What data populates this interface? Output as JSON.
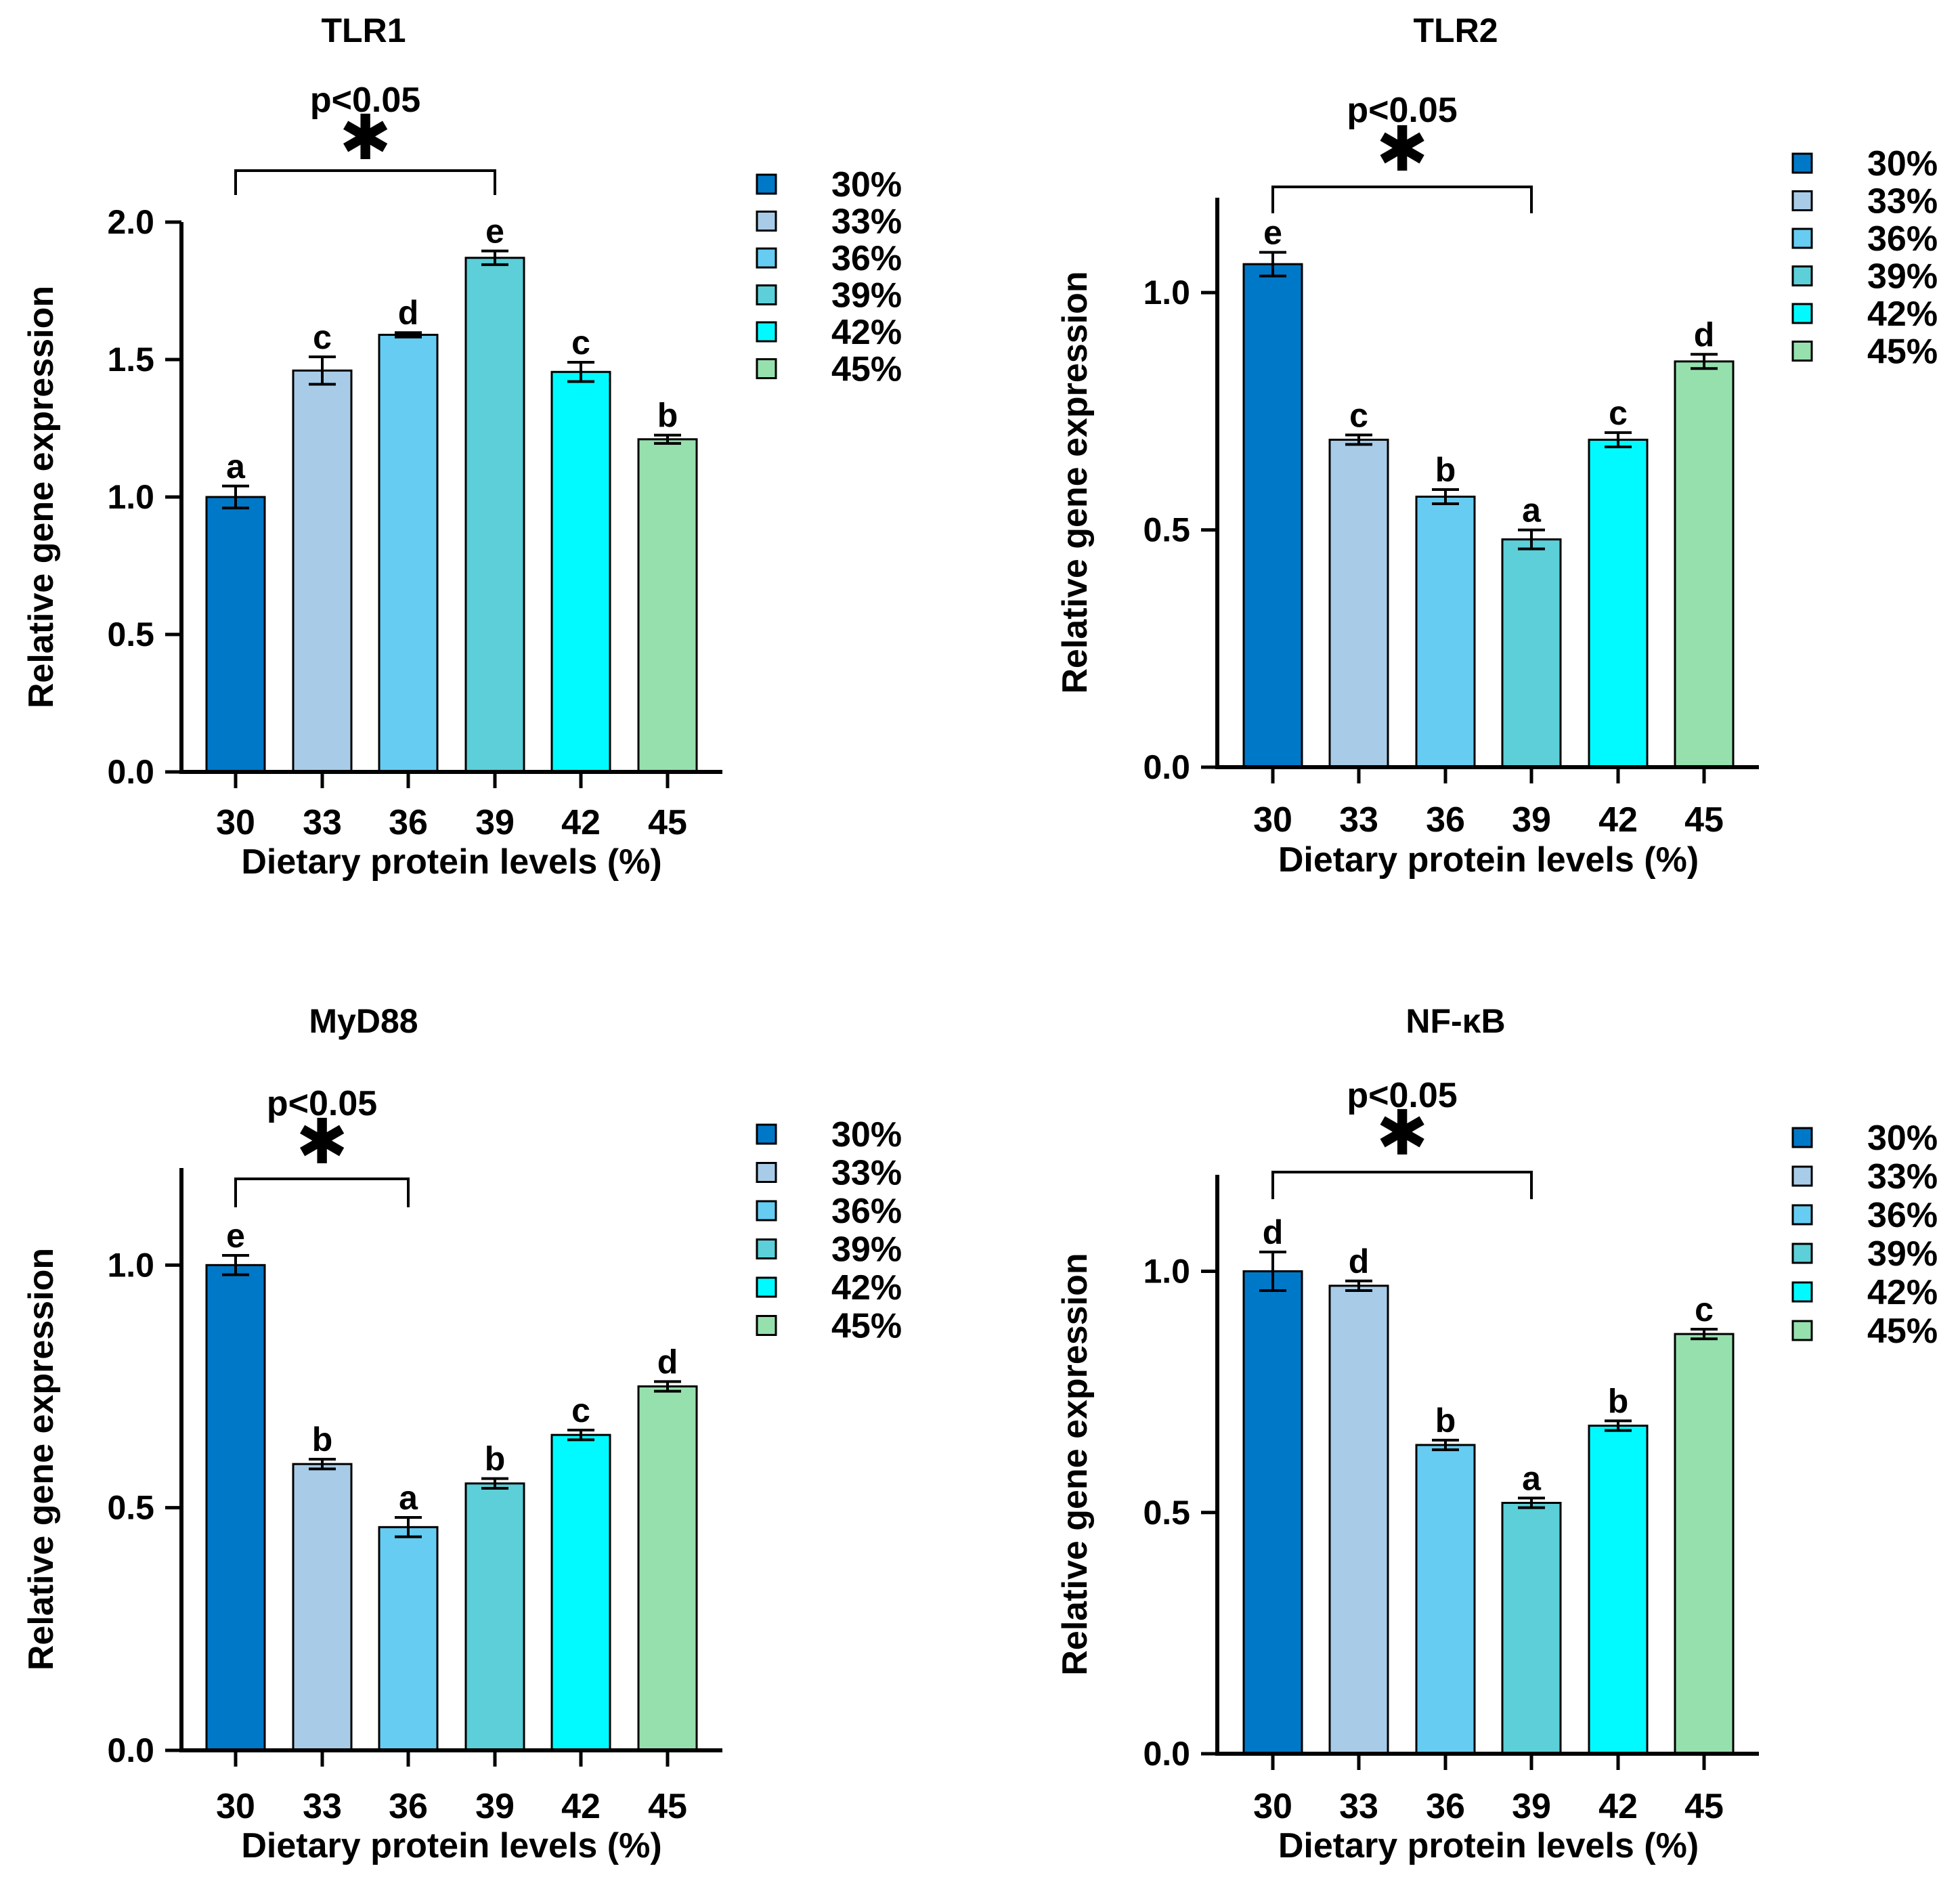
{
  "colors": {
    "30%": "#0078c8",
    "33%": "#a8cce8",
    "36%": "#66ccf2",
    "39%": "#5ccfd8",
    "42%": "#00faff",
    "45%": "#96e0ad",
    "axis": "#000000"
  },
  "chart_data": [
    {
      "type": "bar",
      "title": "TLR1",
      "xlabel": "Dietary protein levels (%)",
      "ylabel": "Relative gene expression",
      "ylim": [
        0,
        2.0
      ],
      "yticks": [
        "0.0",
        "0.5",
        "1.0",
        "1.5",
        "2.0"
      ],
      "categories": [
        "30",
        "33",
        "36",
        "39",
        "42",
        "45"
      ],
      "values": [
        1.0,
        1.46,
        1.59,
        1.87,
        1.455,
        1.21
      ],
      "errors": [
        0.04,
        0.05,
        0.008,
        0.025,
        0.035,
        0.015
      ],
      "letters": [
        "a",
        "c",
        "d",
        "e",
        "c",
        "b"
      ],
      "legend": [
        "30%",
        "33%",
        "36%",
        "39%",
        "42%",
        "45%"
      ],
      "significance": {
        "text": "p<0.05",
        "symbol": "✱",
        "from": "30",
        "to": "39"
      }
    },
    {
      "type": "bar",
      "title": "TLR2",
      "xlabel": "Dietary protein levels (%)",
      "ylabel": "Relative gene expression",
      "ylim": [
        0,
        1.2
      ],
      "yticks": [
        "0.0",
        "0.5",
        "1.0"
      ],
      "categories": [
        "30",
        "33",
        "36",
        "39",
        "42",
        "45"
      ],
      "values": [
        1.06,
        0.69,
        0.57,
        0.48,
        0.69,
        0.855
      ],
      "errors": [
        0.025,
        0.01,
        0.015,
        0.02,
        0.015,
        0.015
      ],
      "letters": [
        "e",
        "c",
        "b",
        "a",
        "c",
        "d"
      ],
      "legend": [
        "30%",
        "33%",
        "36%",
        "39%",
        "42%",
        "45%"
      ],
      "significance": {
        "text": "p<0.05",
        "symbol": "✱",
        "from": "30",
        "to": "39"
      }
    },
    {
      "type": "bar",
      "title": "MyD88",
      "xlabel": "Dietary protein levels (%)",
      "ylabel": "Relative gene expression",
      "ylim": [
        0,
        1.2
      ],
      "yticks": [
        "0.0",
        "0.5",
        "1.0"
      ],
      "categories": [
        "30",
        "33",
        "36",
        "39",
        "42",
        "45"
      ],
      "values": [
        1.0,
        0.59,
        0.46,
        0.55,
        0.65,
        0.75
      ],
      "errors": [
        0.02,
        0.01,
        0.02,
        0.01,
        0.01,
        0.01
      ],
      "letters": [
        "e",
        "b",
        "a",
        "b",
        "c",
        "d"
      ],
      "legend": [
        "30%",
        "33%",
        "36%",
        "39%",
        "42%",
        "45%"
      ],
      "significance": {
        "text": "p<0.05",
        "symbol": "✱",
        "from": "30",
        "to": "36"
      }
    },
    {
      "type": "bar",
      "title": "NF-κB",
      "xlabel": "Dietary protein levels (%)",
      "ylabel": "Relative gene expression",
      "ylim": [
        0,
        1.2
      ],
      "yticks": [
        "0.0",
        "0.5",
        "1.0"
      ],
      "categories": [
        "30",
        "33",
        "36",
        "39",
        "42",
        "45"
      ],
      "values": [
        1.0,
        0.97,
        0.64,
        0.52,
        0.68,
        0.87
      ],
      "errors": [
        0.04,
        0.01,
        0.01,
        0.01,
        0.01,
        0.01
      ],
      "letters": [
        "d",
        "d",
        "b",
        "a",
        "b",
        "c"
      ],
      "legend": [
        "30%",
        "33%",
        "36%",
        "39%",
        "42%",
        "45%"
      ],
      "significance": {
        "text": "p<0.05",
        "symbol": "✱",
        "from": "30",
        "to": "39"
      }
    }
  ]
}
